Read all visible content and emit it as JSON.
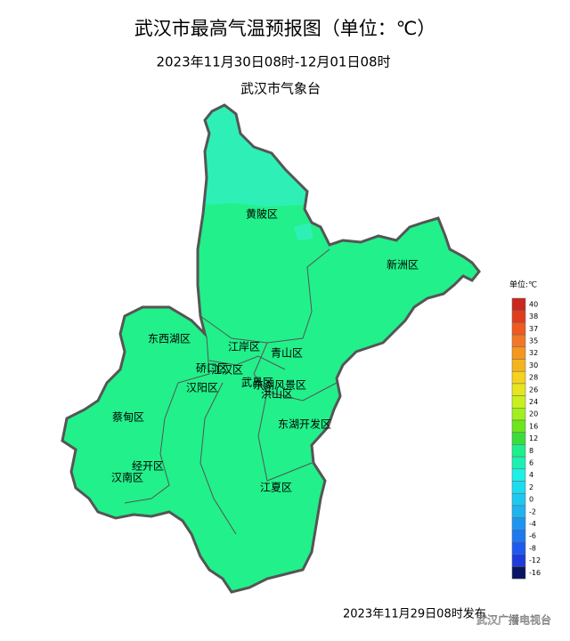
{
  "header": {
    "title": "武汉市最高气温预报图（单位：℃）",
    "subtitle": "2023年11月30日08时-12月01日08时",
    "issuer": "武汉市气象台"
  },
  "districts": [
    "黄陂区",
    "新洲区",
    "东西湖区",
    "江岸区",
    "硚口区",
    "江汉区",
    "青山区",
    "汉阳区",
    "武昌区",
    "东湖风景区",
    "洪山区",
    "蔡甸区",
    "东湖开发区",
    "经开区",
    "汉南区",
    "江夏区"
  ],
  "legend": {
    "title": "单位:℃",
    "levels": [
      {
        "value": 40,
        "color": "#c8281e"
      },
      {
        "value": 38,
        "color": "#e03c1e"
      },
      {
        "value": 37,
        "color": "#f05a1e"
      },
      {
        "value": 35,
        "color": "#f07828"
      },
      {
        "value": 32,
        "color": "#f5961e"
      },
      {
        "value": 30,
        "color": "#f5b41e"
      },
      {
        "value": 28,
        "color": "#f5d21e"
      },
      {
        "value": 26,
        "color": "#e6e61e"
      },
      {
        "value": 24,
        "color": "#c8f01e"
      },
      {
        "value": 20,
        "color": "#a0f01e"
      },
      {
        "value": 16,
        "color": "#6ee61e"
      },
      {
        "value": 12,
        "color": "#3cdc3c"
      },
      {
        "value": 8,
        "color": "#1ef08c"
      },
      {
        "value": 6,
        "color": "#1ef0b4"
      },
      {
        "value": 4,
        "color": "#1ef0e6"
      },
      {
        "value": 2,
        "color": "#1edcf0"
      },
      {
        "value": 0,
        "color": "#1ec8f0"
      },
      {
        "value": -2,
        "color": "#1eb4f0"
      },
      {
        "value": -4,
        "color": "#1e96f0"
      },
      {
        "value": -6,
        "color": "#1e78f0"
      },
      {
        "value": -8,
        "color": "#1e5af0"
      },
      {
        "value": -12,
        "color": "#1e3cdc"
      },
      {
        "value": -16,
        "color": "#0a1464"
      }
    ]
  },
  "footer": {
    "issued": "2023年11月29日08时发布",
    "watermark": "武汉广播电视台"
  }
}
